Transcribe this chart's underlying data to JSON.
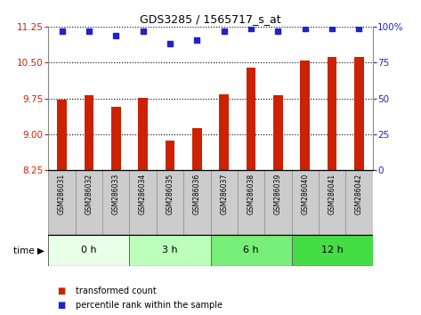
{
  "title": "GDS3285 / 1565717_s_at",
  "samples": [
    "GSM286031",
    "GSM286032",
    "GSM286033",
    "GSM286034",
    "GSM286035",
    "GSM286036",
    "GSM286037",
    "GSM286038",
    "GSM286039",
    "GSM286040",
    "GSM286041",
    "GSM286042"
  ],
  "bar_values": [
    9.73,
    9.82,
    9.58,
    9.76,
    8.87,
    9.12,
    9.83,
    10.4,
    9.82,
    10.55,
    10.62,
    10.62
  ],
  "percentile_values": [
    97,
    97,
    94,
    97,
    88,
    91,
    97,
    99,
    97,
    99,
    99,
    99
  ],
  "bar_color": "#cc2200",
  "percentile_color": "#2222cc",
  "ylim_left": [
    8.25,
    11.25
  ],
  "ylim_right": [
    0,
    100
  ],
  "yticks_left": [
    8.25,
    9.0,
    9.75,
    10.5,
    11.25
  ],
  "yticks_right": [
    0,
    25,
    50,
    75,
    100
  ],
  "groups": [
    {
      "label": "0 h",
      "start": 0,
      "end": 3,
      "color": "#e8ffe8"
    },
    {
      "label": "3 h",
      "start": 3,
      "end": 6,
      "color": "#bbffbb"
    },
    {
      "label": "6 h",
      "start": 6,
      "end": 9,
      "color": "#77ee77"
    },
    {
      "label": "12 h",
      "start": 9,
      "end": 12,
      "color": "#44dd44"
    }
  ],
  "legend_bar": "transformed count",
  "legend_pct": "percentile rank within the sample",
  "bar_bottom": 8.25,
  "sample_bg_color": "#cccccc",
  "sample_border_color": "#888888"
}
